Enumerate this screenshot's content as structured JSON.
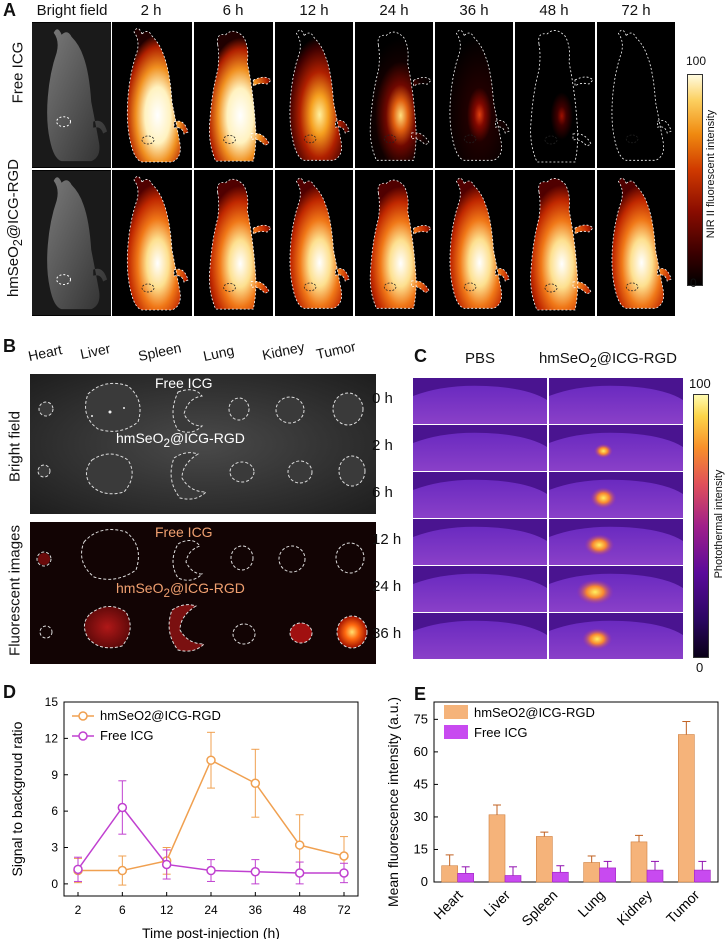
{
  "panelA": {
    "letter": "A",
    "timepoints": [
      "Bright field",
      "2 h",
      "6 h",
      "12 h",
      "24 h",
      "36 h",
      "48 h",
      "72 h"
    ],
    "rows": [
      "Free ICG",
      "hmSeO2@ICG-RGD"
    ],
    "colorbar": {
      "max": "100",
      "min": "0",
      "label": "NIR II fluorescent intensity"
    }
  },
  "panelB": {
    "letter": "B",
    "organs": [
      "Heart",
      "Liver",
      "Spleen",
      "Lung",
      "Kidney",
      "Tumor"
    ],
    "bright_label": "Bright field",
    "fluor_label": "Fluorescent images",
    "group1": "Free ICG",
    "group2": "hmSeO2@ICG-RGD"
  },
  "panelC": {
    "letter": "C",
    "cols": [
      "PBS",
      "hmSeO2@ICG-RGD"
    ],
    "times": [
      "0 h",
      "2 h",
      "6 h",
      "12 h",
      "24 h",
      "36 h"
    ],
    "colorbar": {
      "max": "100",
      "min": "0",
      "label": "Photothermal intensity"
    }
  },
  "chart_data": [
    {
      "panel": "D",
      "type": "line",
      "title": "",
      "xlabel": "Time post-injection (h)",
      "ylabel": "Signal to backgroud ratio",
      "categories": [
        "2",
        "6",
        "12",
        "24",
        "36",
        "48",
        "72"
      ],
      "ylim": [
        -1,
        15
      ],
      "yticks": [
        "0",
        "3",
        "6",
        "9",
        "12",
        "15"
      ],
      "series": [
        {
          "name": "hmSeO2@ICG-RGD",
          "color": "#f0a050",
          "values": [
            1.1,
            1.1,
            1.9,
            10.2,
            8.3,
            3.2,
            2.3
          ],
          "errors": [
            1.0,
            1.2,
            1.1,
            2.3,
            2.8,
            2.5,
            1.6
          ]
        },
        {
          "name": "Free ICG",
          "color": "#c040d0",
          "values": [
            1.2,
            6.3,
            1.6,
            1.1,
            1.0,
            0.9,
            0.9
          ],
          "errors": [
            1.0,
            2.2,
            1.2,
            0.9,
            1.0,
            0.9,
            0.8
          ]
        }
      ]
    },
    {
      "panel": "E",
      "type": "bar",
      "title": "",
      "xlabel": "",
      "ylabel": "Mean fluorescence intensity (a.u.)",
      "categories": [
        "Heart",
        "Liver",
        "Spleen",
        "Lung",
        "Kidney",
        "Tumor"
      ],
      "ylim": [
        0,
        83
      ],
      "yticks": [
        "0",
        "15",
        "30",
        "45",
        "60",
        "75"
      ],
      "series": [
        {
          "name": "hmSeO2@ICG-RGD",
          "color": "#f5b37a",
          "values": [
            7.5,
            31,
            21,
            9,
            18.5,
            68
          ],
          "errors": [
            5,
            4.5,
            2,
            3,
            3,
            6
          ]
        },
        {
          "name": "Free ICG",
          "color": "#c84af0",
          "values": [
            4,
            3,
            4.5,
            6.5,
            5.5,
            5.5
          ],
          "errors": [
            3,
            4,
            3,
            3,
            4,
            4
          ]
        }
      ]
    }
  ]
}
